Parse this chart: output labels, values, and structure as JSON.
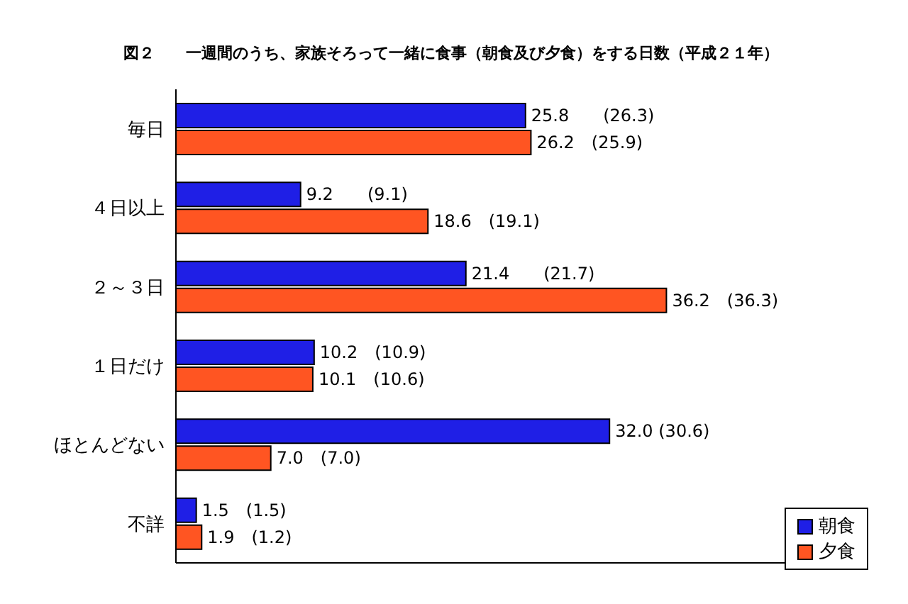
{
  "chart_data": {
    "type": "bar",
    "orientation": "horizontal",
    "title": "図２　　一週間のうち、家族そろって一緒に食事（朝食及び夕食）をする日数（平成２１年）",
    "categories": [
      "毎日",
      "４日以上",
      "２～３日",
      "１日だけ",
      "ほとんどない",
      "不詳"
    ],
    "series": [
      {
        "name": "朝食",
        "color": "#1f1fe6",
        "values": [
          25.8,
          9.2,
          21.4,
          10.2,
          32.0,
          1.5
        ],
        "value_labels": [
          "25.8　　(26.3)",
          "9.2　　(9.1)",
          "21.4　　(21.7)",
          "10.2　(10.9)",
          "32.0 (30.6)",
          "1.5　(1.5)"
        ]
      },
      {
        "name": "夕食",
        "color": "#ff5522",
        "values": [
          26.2,
          18.6,
          36.2,
          10.1,
          7.0,
          1.9
        ],
        "value_labels": [
          "26.2　(25.9)",
          "18.6　(19.1)",
          "36.2　(36.3)",
          "10.1　(10.6)",
          "7.0　(7.0)",
          "1.9　(1.2)"
        ]
      }
    ],
    "tick_labels": "y",
    "legend": "bottom right"
  }
}
